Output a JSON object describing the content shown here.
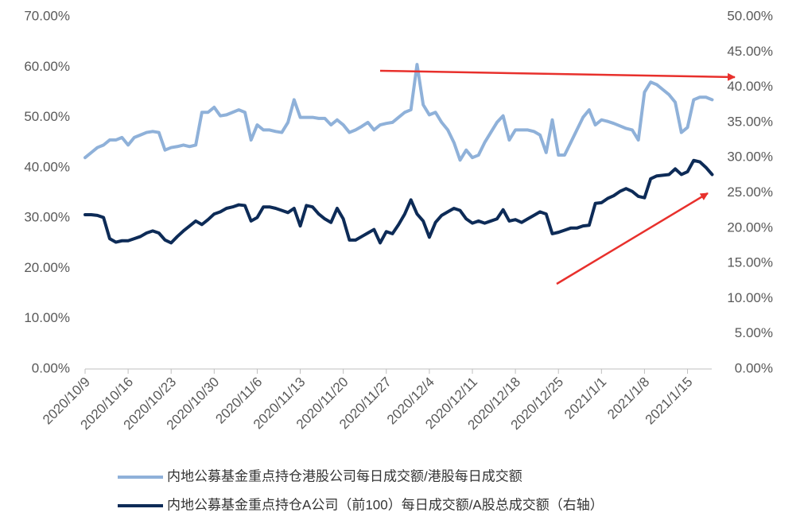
{
  "chart_data": {
    "type": "line",
    "categories": [
      "2020/10/9",
      null,
      null,
      null,
      null,
      null,
      null,
      "2020/10/16",
      null,
      null,
      null,
      null,
      null,
      null,
      "2020/10/23",
      null,
      null,
      null,
      null,
      null,
      null,
      "2020/10/30",
      null,
      null,
      null,
      null,
      null,
      null,
      "2020/11/6",
      null,
      null,
      null,
      null,
      null,
      null,
      "2020/11/13",
      null,
      null,
      null,
      null,
      null,
      null,
      "2020/11/20",
      null,
      null,
      null,
      null,
      null,
      null,
      "2020/11/27",
      null,
      null,
      null,
      null,
      null,
      null,
      "2020/12/4",
      null,
      null,
      null,
      null,
      null,
      null,
      "2020/12/11",
      null,
      null,
      null,
      null,
      null,
      null,
      "2020/12/18",
      null,
      null,
      null,
      null,
      null,
      null,
      "2020/12/25",
      null,
      null,
      null,
      null,
      null,
      null,
      "2021/1/1",
      null,
      null,
      null,
      null,
      null,
      null,
      "2021/1/8",
      null,
      null,
      null,
      null,
      null,
      null,
      "2021/1/15",
      null,
      null,
      null,
      null
    ],
    "series": [
      {
        "name": "内地公募基金重点持仓港股公司每日成交额/港股每日成交额",
        "color": "#8fb1d9",
        "values": [
          42,
          43,
          44,
          44.5,
          45.5,
          45.5,
          46,
          44.5,
          46,
          46.5,
          47,
          47.2,
          47,
          43.5,
          44,
          44.2,
          44.5,
          44.2,
          44.5,
          51,
          51,
          52,
          50.3,
          50.5,
          51,
          51.5,
          51,
          45.5,
          48.5,
          47.5,
          47.5,
          47.2,
          47,
          49,
          53.5,
          50,
          50,
          50,
          49.8,
          49.8,
          48.5,
          49.5,
          48.5,
          47,
          47.5,
          48.2,
          49,
          47.5,
          48.5,
          48.8,
          49,
          50,
          51,
          51.5,
          60.5,
          52.5,
          50.5,
          51,
          49,
          47.5,
          45,
          41.5,
          43.5,
          42,
          42.5,
          45,
          47,
          49,
          50.3,
          45.5,
          47.5,
          47.5,
          47.5,
          47.2,
          46.5,
          43,
          49.5,
          42.5,
          42.5,
          45,
          47.5,
          50,
          51.5,
          48.5,
          49.5,
          49.2,
          48.8,
          48.3,
          47.8,
          47.5,
          45.5,
          55,
          57,
          56.5,
          55.5,
          54.5,
          53,
          47,
          48,
          53.5,
          54,
          54,
          53.5
        ]
      },
      {
        "name": "内地公募基金重点持仓A公司（前100）每日成交额/A股总成交额（右轴）",
        "color": "#0d2b57",
        "axis": "y2",
        "values": [
          21.9,
          21.9,
          21.8,
          21.5,
          18.5,
          18,
          18.2,
          18.2,
          18.5,
          18.8,
          19.3,
          19.6,
          19.3,
          18.3,
          17.9,
          18.8,
          19.6,
          20.3,
          21,
          20.5,
          21.2,
          22,
          22.3,
          22.8,
          23,
          23.3,
          23.2,
          21,
          21.5,
          23,
          23,
          22.8,
          22.5,
          22.2,
          22.8,
          20.3,
          23.2,
          23,
          22,
          21.3,
          20.8,
          22.8,
          21.3,
          18.3,
          18.3,
          18.8,
          19.3,
          19.8,
          17.9,
          19.5,
          19.2,
          20.5,
          22,
          24,
          22,
          21,
          18.7,
          20.8,
          21.8,
          22.3,
          22.8,
          22.5,
          21.3,
          20.7,
          21,
          20.7,
          21,
          21.3,
          22.6,
          21,
          21.2,
          20.8,
          21.3,
          21.8,
          22.3,
          22,
          19.2,
          19.4,
          19.7,
          20,
          20,
          20.3,
          20.4,
          23.5,
          23.6,
          24.2,
          24.6,
          25.2,
          25.6,
          25.2,
          24.5,
          24.3,
          27,
          27.4,
          27.5,
          27.6,
          28.4,
          27.6,
          28,
          29.6,
          29.4,
          28.6,
          27.6
        ]
      }
    ],
    "ylim": [
      0,
      70
    ],
    "yticks": [
      {
        "value": 0,
        "label": "0.00%"
      },
      {
        "value": 10,
        "label": "10.00%"
      },
      {
        "value": 20,
        "label": "20.00%"
      },
      {
        "value": 30,
        "label": "30.00%"
      },
      {
        "value": 40,
        "label": "40.00%"
      },
      {
        "value": 50,
        "label": "50.00%"
      },
      {
        "value": 60,
        "label": "60.00%"
      },
      {
        "value": 70,
        "label": "70.00%"
      }
    ],
    "y2lim": [
      0,
      50
    ],
    "y2ticks": [
      {
        "value": 0,
        "label": "0.00%"
      },
      {
        "value": 5,
        "label": "5.00%"
      },
      {
        "value": 10,
        "label": "10.00%"
      },
      {
        "value": 15,
        "label": "15.00%"
      },
      {
        "value": 20,
        "label": "20.00%"
      },
      {
        "value": 25,
        "label": "25.00%"
      },
      {
        "value": 30,
        "label": "30.00%"
      },
      {
        "value": 35,
        "label": "35.00%"
      },
      {
        "value": 40,
        "label": "40.00%"
      },
      {
        "value": 45,
        "label": "45.00%"
      },
      {
        "value": 50,
        "label": "50.00%"
      }
    ],
    "grid": false
  }
}
